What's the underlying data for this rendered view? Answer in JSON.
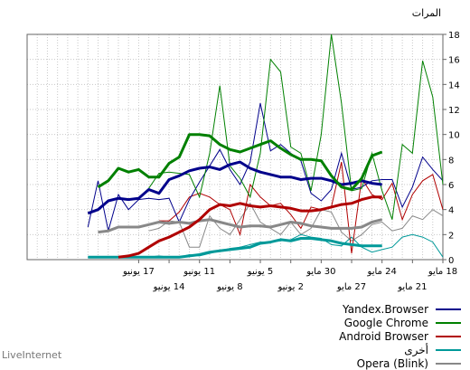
{
  "source_label": "LiveInternet",
  "chart_data": {
    "type": "line",
    "ylabel": "المرات",
    "ylim": [
      0,
      18
    ],
    "yticks": [
      0,
      2,
      4,
      6,
      8,
      10,
      12,
      14,
      16,
      18
    ],
    "grid": true,
    "legend_position": "bottom-right",
    "x_days_ago": [
      0,
      1,
      2,
      3,
      4,
      5,
      6,
      7,
      8,
      9,
      10,
      11,
      12,
      13,
      14,
      15,
      16,
      17,
      18,
      19,
      20,
      21,
      22,
      23,
      24,
      25,
      26,
      27,
      28,
      29,
      30,
      31,
      32,
      33,
      34,
      35,
      36,
      37,
      38,
      39,
      40,
      41
    ],
    "xtick_labels": [
      {
        "label": "18 مايو",
        "days_ago": 0,
        "row": 0
      },
      {
        "label": "21 مايو",
        "days_ago": 3,
        "row": 1
      },
      {
        "label": "24 مايو",
        "days_ago": 6,
        "row": 0
      },
      {
        "label": "27 مايو",
        "days_ago": 9,
        "row": 1
      },
      {
        "label": "30 مايو",
        "days_ago": 12,
        "row": 0
      },
      {
        "label": "2 يونيو",
        "days_ago": 15,
        "row": 1
      },
      {
        "label": "5 يونيو",
        "days_ago": 18,
        "row": 0
      },
      {
        "label": "8 يونيو",
        "days_ago": 21,
        "row": 1
      },
      {
        "label": "11 يونيو",
        "days_ago": 24,
        "row": 0
      },
      {
        "label": "14 يونيو",
        "days_ago": 27,
        "row": 1
      },
      {
        "label": "17 يونيو",
        "days_ago": 30,
        "row": 0
      }
    ],
    "series": [
      {
        "name": "Yandex.Browser",
        "color": "#00008b",
        "daily": [
          6.3,
          7.2,
          8.2,
          5.8,
          4.2,
          6.4,
          6.4,
          6.3,
          5.8,
          5.6,
          8.5,
          5.6,
          4.7,
          5.3,
          7.9,
          8.5,
          9.2,
          8.7,
          12.5,
          7.8,
          6.0,
          7.2,
          8.8,
          7.5,
          6.2,
          4.8,
          3.0,
          4.9,
          4.8,
          4.9,
          4.8,
          4.0,
          5.2,
          2.3,
          6.3,
          2.6
        ],
        "trend": [
          6.0,
          6.1,
          6.3,
          6.1,
          6.0,
          6.3,
          6.5,
          6.5,
          6.4,
          6.6,
          6.6,
          6.8,
          7.0,
          7.3,
          7.8,
          7.6,
          7.2,
          7.4,
          7.3,
          7.1,
          6.7,
          6.4,
          5.3,
          5.6,
          4.9,
          4.8,
          4.9,
          4.7,
          4.0,
          3.7
        ]
      },
      {
        "name": "Google Chrome",
        "color": "#008000",
        "daily": [
          6.0,
          13.0,
          15.9,
          8.5,
          9.2,
          3.2,
          5.5,
          8.5,
          5.7,
          5.5,
          12.5,
          18.0,
          10.0,
          5.5,
          8.5,
          9.0,
          15.0,
          16.0,
          8.5,
          5.0,
          6.5,
          7.5,
          13.9,
          8.5,
          5.0,
          6.8,
          6.9,
          7.0,
          6.9,
          5.7
        ],
        "trend": [
          8.6,
          8.3,
          6.5,
          5.6,
          5.8,
          6.7,
          7.9,
          8.0,
          8.0,
          8.4,
          8.9,
          9.5,
          9.2,
          8.9,
          8.6,
          8.8,
          9.2,
          9.9,
          10.0,
          10.0,
          8.2,
          7.7,
          6.6,
          6.6,
          7.2,
          7.0,
          7.3,
          6.3,
          5.8
        ]
      },
      {
        "name": "Android Browser",
        "color": "#b00000",
        "daily": [
          4.0,
          6.8,
          6.3,
          5.2,
          3.2,
          6.1,
          4.8,
          5.2,
          6.5,
          0.5,
          7.8,
          4.2,
          4.0,
          4.2,
          2.5,
          3.6,
          4.5,
          4.3,
          5.0,
          6.0,
          2.0,
          4.0,
          4.4,
          5.0,
          5.3,
          5.0,
          3.8,
          3.1,
          3.1
        ],
        "trend": [
          5.0,
          5.0,
          4.8,
          4.5,
          4.4,
          4.2,
          4.0,
          3.9,
          3.9,
          4.1,
          4.2,
          4.3,
          4.2,
          4.3,
          4.5,
          4.3,
          4.4,
          4.0,
          3.2,
          2.6,
          2.2,
          1.8,
          1.5,
          1.0,
          0.5,
          0.3,
          0.2
        ]
      },
      {
        "name": "أخرى",
        "color": "#009999",
        "daily": [
          0.2,
          1.4,
          1.8,
          2.0,
          1.8,
          1.0,
          0.8,
          0.6,
          1.0,
          1.8,
          1.1,
          1.2,
          1.7,
          1.8,
          2.0,
          1.6,
          1.5,
          1.4,
          1.4,
          1.2,
          1.0,
          0.9,
          0.7,
          0.5,
          0.3,
          0.4,
          0.2,
          0.2,
          0.3,
          0.2
        ],
        "trend": [
          1.1,
          1.1,
          1.1,
          1.2,
          1.3,
          1.5,
          1.6,
          1.7,
          1.7,
          1.5,
          1.6,
          1.4,
          1.3,
          1.0,
          0.9,
          0.8,
          0.7,
          0.6,
          0.4,
          0.3,
          0.2,
          0.2,
          0.2,
          0.2,
          0.2,
          0.2,
          0.2,
          0.2,
          0.2,
          0.2
        ]
      },
      {
        "name": "Opera (Blink)",
        "color": "#888888",
        "daily": [
          3.5,
          4.0,
          3.2,
          3.5,
          2.5,
          2.3,
          3.0,
          2.8,
          2.0,
          1.5,
          2.2,
          3.8,
          4.0,
          2.5,
          2.0,
          3.0,
          2.0,
          2.5,
          3.0,
          4.5,
          3.2,
          2.0,
          2.5,
          3.5,
          1.0,
          1.0,
          3.0,
          3.1,
          2.5,
          2.3
        ],
        "trend": [
          3.2,
          3.0,
          2.6,
          2.5,
          2.5,
          2.5,
          2.6,
          2.7,
          2.9,
          3.0,
          2.8,
          2.6,
          2.7,
          2.7,
          2.6,
          2.8,
          3.0,
          3.2,
          3.1,
          2.9,
          3.0,
          2.9,
          3.0,
          2.8,
          2.6,
          2.6,
          2.6,
          2.3,
          2.2
        ]
      }
    ]
  }
}
